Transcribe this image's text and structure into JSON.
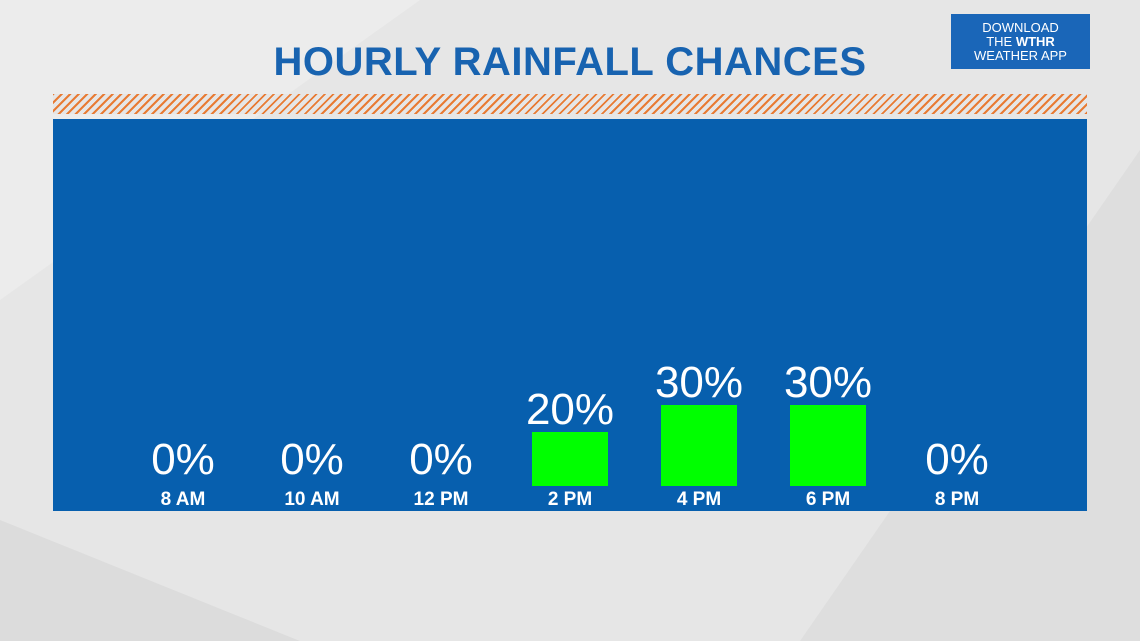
{
  "header": {
    "title": "HOURLY RAINFALL CHANCES"
  },
  "app_badge": {
    "line1": "DOWNLOAD",
    "line2_prefix": "THE ",
    "line2_brand": "WTHR",
    "line3": "WEATHER APP"
  },
  "colors": {
    "title": "#1863b0",
    "panel": "#075fae",
    "bar": "#00ff00",
    "hatch": "#e87b34",
    "label": "#ffffff",
    "badge": "#1a66b8"
  },
  "chart_data": {
    "type": "bar",
    "title": "HOURLY RAINFALL CHANCES",
    "categories": [
      "8 AM",
      "10 AM",
      "12 PM",
      "2 PM",
      "4 PM",
      "6 PM",
      "8 PM"
    ],
    "values": [
      0,
      0,
      0,
      20,
      30,
      30,
      0
    ],
    "value_labels": [
      "0%",
      "0%",
      "0%",
      "20%",
      "30%",
      "30%",
      "0%"
    ],
    "unit": "%",
    "ylim": [
      0,
      100
    ],
    "grid": false,
    "legend": "none"
  }
}
